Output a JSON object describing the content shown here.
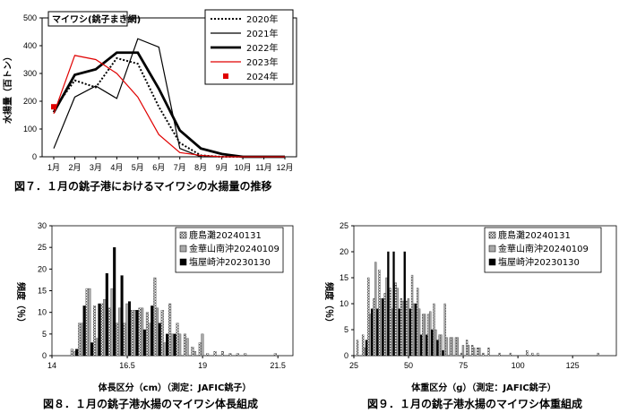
{
  "figure7": {
    "caption": "図７．１月の銚子港におけるマイワシの水揚量の推移",
    "chart_data": {
      "type": "line",
      "title": "マイワシ(銚子まき網)",
      "ylabel": "水揚量（百トン）",
      "xlabel": "",
      "categories": [
        "1月",
        "2月",
        "3月",
        "4月",
        "5月",
        "6月",
        "7月",
        "8月",
        "9月",
        "10月",
        "11月",
        "12月"
      ],
      "ylim": [
        0,
        500
      ],
      "yticks": [
        0,
        100,
        200,
        300,
        400,
        500
      ],
      "legend": "top-right",
      "series": [
        {
          "name": "2020年",
          "color": "#000000",
          "style": "dotted",
          "values": [
            170,
            275,
            250,
            355,
            335,
            180,
            50,
            5,
            0,
            0,
            0,
            0
          ]
        },
        {
          "name": "2021年",
          "color": "#000000",
          "style": "thin",
          "values": [
            30,
            215,
            255,
            210,
            425,
            395,
            30,
            0,
            0,
            0,
            0,
            0
          ]
        },
        {
          "name": "2022年",
          "color": "#000000",
          "style": "thick",
          "values": [
            160,
            295,
            315,
            375,
            375,
            245,
            95,
            30,
            10,
            0,
            0,
            0
          ]
        },
        {
          "name": "2023年",
          "color": "#e00000",
          "style": "thin",
          "values": [
            155,
            365,
            350,
            300,
            215,
            80,
            15,
            5,
            0,
            0,
            0,
            0
          ]
        },
        {
          "name": "2024年",
          "color": "#e00000",
          "style": "marker",
          "values": [
            180,
            null,
            null,
            null,
            null,
            null,
            null,
            null,
            null,
            null,
            null,
            null
          ]
        }
      ]
    }
  },
  "figure8": {
    "caption": "図８．１月の銚子港水揚のマイワシ体長組成",
    "chart_data": {
      "type": "bar",
      "ylabel": "頻度（％）",
      "xlabel": "体長区分（cm）（測定：JAFIC銚子）",
      "xlim": [
        14,
        22
      ],
      "xticks": [
        14,
        16.5,
        19,
        21.5
      ],
      "ylim": [
        0,
        30
      ],
      "yticks": [
        0,
        5,
        10,
        15,
        20,
        25,
        30
      ],
      "bin_width": 0.25,
      "legend": "top-right",
      "series": [
        {
          "name": "鹿島灘20240131",
          "pattern": "check",
          "x": [
            14.75,
            15,
            15.25,
            15.5,
            15.75,
            16,
            16.25,
            16.5,
            16.75,
            17,
            17.25,
            17.5,
            17.75,
            18,
            18.25,
            18.5,
            18.75,
            19,
            19.25,
            19.5,
            19.75,
            20,
            20.25,
            20.5,
            20.75,
            21,
            21.25,
            21.5,
            21.75,
            22
          ],
          "values": [
            1.5,
            7.5,
            15.5,
            11.5,
            12,
            11,
            7.5,
            7.5,
            10.5,
            11,
            10,
            18,
            10.5,
            12,
            7.5,
            5,
            2,
            3,
            0.5,
            1,
            1,
            0.5,
            0.5,
            0.5,
            0,
            0,
            0,
            0.5,
            0,
            0
          ]
        },
        {
          "name": "金華山南沖20240109",
          "pattern": "gray",
          "x": [
            14.75,
            15,
            15.25,
            15.5,
            15.75,
            16,
            16.25,
            16.5,
            16.75,
            17,
            17.25,
            17.5,
            17.75,
            18,
            18.25,
            18.5,
            18.75,
            19,
            19.25,
            19.5,
            19.75,
            20,
            20.25,
            20.5,
            20.75,
            21,
            21.25,
            21.5,
            21.75,
            22
          ],
          "values": [
            1,
            7.5,
            15.5,
            4,
            13,
            15.5,
            11,
            12,
            10.5,
            11,
            7.5,
            11,
            3,
            5,
            5,
            4,
            1,
            5,
            0,
            0,
            0,
            0,
            0,
            0,
            0,
            0,
            0,
            0,
            0,
            0
          ]
        },
        {
          "name": "塩屋崎沖20230130",
          "pattern": "black",
          "x": [
            14.75,
            15,
            15.25,
            15.5,
            15.75,
            16,
            16.25,
            16.5,
            16.75,
            17,
            17.25,
            17.5,
            17.75,
            18,
            18.25,
            18.5,
            18.75,
            19,
            19.25,
            19.5,
            19.75,
            20,
            20.25,
            20.5,
            20.75,
            21,
            21.25,
            21.5,
            21.75,
            22
          ],
          "values": [
            1.5,
            11.5,
            3,
            12,
            19,
            25,
            18.5,
            12.5,
            10.5,
            6,
            11.5,
            7.5,
            5,
            5,
            0,
            0,
            0,
            0,
            0,
            0,
            0,
            0,
            0,
            0,
            0,
            0,
            0,
            0,
            0,
            0
          ]
        }
      ]
    }
  },
  "figure9": {
    "caption": "図９．１月の銚子港水揚のマイワシ体重組成",
    "chart_data": {
      "type": "bar",
      "ylabel": "頻度（％）",
      "xlabel": "体重区分（g）（測定：JAFIC銚子）",
      "xlim": [
        25,
        145
      ],
      "xticks": [
        25,
        50,
        75,
        100,
        125
      ],
      "ylim": [
        0,
        25
      ],
      "yticks": [
        0,
        5,
        10,
        15,
        20,
        25
      ],
      "bin_width": 2.5,
      "legend": "top-right",
      "series": [
        {
          "name": "鹿島灘20240131",
          "pattern": "check",
          "x": [
            27.5,
            30,
            32.5,
            35,
            37.5,
            40,
            42.5,
            45,
            47.5,
            50,
            52.5,
            55,
            57.5,
            60,
            62.5,
            65,
            67.5,
            70,
            72.5,
            75,
            77.5,
            80,
            82.5,
            85,
            87.5,
            90,
            92.5,
            95,
            97.5,
            100,
            102.5,
            105,
            107.5,
            110,
            137.5
          ],
          "values": [
            3,
            4,
            15,
            11,
            16.5,
            12,
            13,
            14,
            11,
            10.5,
            15.5,
            13,
            8,
            8,
            10,
            4,
            10,
            3.5,
            3.5,
            0.5,
            3,
            2,
            1.5,
            0.5,
            1.5,
            0,
            0.5,
            0,
            0.5,
            0,
            0,
            1,
            0.5,
            0.5,
            0.5
          ]
        },
        {
          "name": "金華山南沖20240109",
          "pattern": "gray",
          "x": [
            27.5,
            30,
            32.5,
            35,
            37.5,
            40,
            42.5,
            45,
            47.5,
            50,
            52.5,
            55,
            57.5,
            60,
            62.5,
            65,
            67.5,
            70,
            72.5,
            75,
            77.5,
            80,
            82.5,
            85,
            87.5,
            90,
            92.5,
            95,
            97.5,
            100,
            102.5,
            105,
            107.5,
            110,
            137.5
          ],
          "values": [
            0,
            1.5,
            8,
            18,
            11,
            15,
            9,
            13,
            10.5,
            11,
            10,
            9,
            8,
            8.5,
            5,
            4,
            3.5,
            3.5,
            3.5,
            2,
            2,
            1.5,
            1.5,
            0,
            0,
            0,
            0,
            0,
            0,
            0,
            0,
            0,
            0,
            0,
            0
          ]
        },
        {
          "name": "塩屋崎沖20230130",
          "pattern": "black",
          "x": [
            27.5,
            30,
            32.5,
            35,
            37.5,
            40,
            42.5,
            45,
            47.5,
            50,
            52.5,
            55,
            57.5,
            60,
            62.5,
            65,
            67.5,
            70,
            72.5,
            75,
            77.5,
            80,
            82.5,
            85,
            87.5,
            90,
            92.5,
            95,
            97.5,
            100,
            102.5,
            105,
            107.5,
            110,
            137.5
          ],
          "values": [
            0,
            3,
            9,
            9,
            11,
            20,
            20,
            9,
            20,
            9,
            10,
            4,
            4,
            5,
            3,
            1,
            0,
            0,
            0,
            0,
            0,
            0,
            0,
            0,
            0,
            0,
            0,
            0,
            0,
            0,
            0,
            0,
            0,
            0,
            0
          ]
        }
      ]
    }
  }
}
